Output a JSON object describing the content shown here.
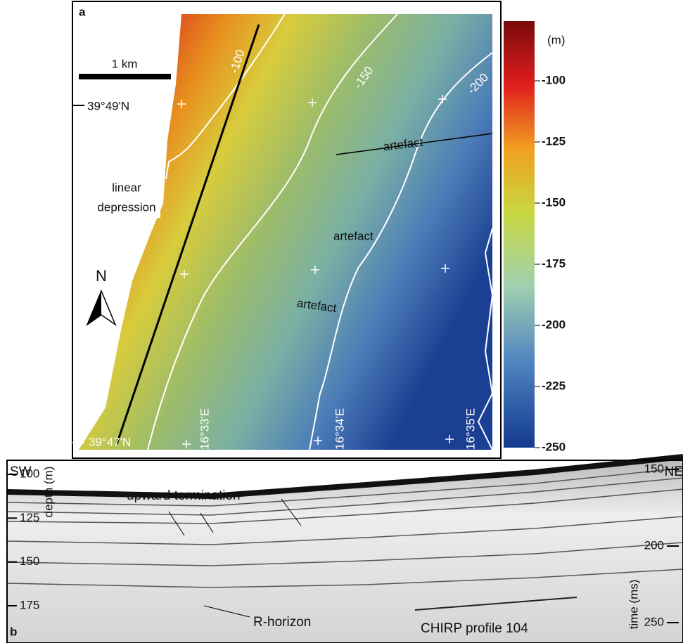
{
  "panel_a": {
    "label": "a",
    "scale_bar": "1 km",
    "latitudes": [
      "39°49'N",
      "39°47'N"
    ],
    "longitudes": [
      "16°33'E",
      "16°34'E",
      "16°35'E"
    ],
    "contours": [
      "-100",
      "-150",
      "-200"
    ],
    "annotations": {
      "linear_depression": [
        "linear",
        "depression"
      ],
      "artefacts": [
        "artefact",
        "artefact",
        "artefact"
      ]
    },
    "north": "N",
    "colorbar": {
      "unit": "(m)",
      "ticks": [
        -100,
        -125,
        -150,
        -175,
        -200,
        -225,
        -250
      ]
    }
  },
  "panel_b": {
    "label": "b",
    "left_end": "SW",
    "right_end": "NE",
    "depth_axis": {
      "label": "depth (m)",
      "ticks": [
        100,
        125,
        150,
        175
      ]
    },
    "time_axis": {
      "label": "time (ms)",
      "ticks": [
        150,
        200,
        250
      ]
    },
    "annotations": [
      "upward termination",
      "R-horizon"
    ],
    "profile_name": "CHIRP profile 104"
  }
}
